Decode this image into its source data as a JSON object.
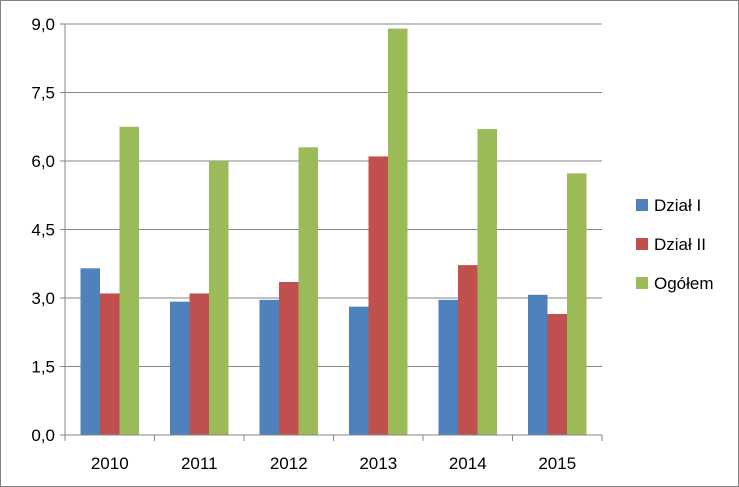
{
  "chart_data": {
    "type": "bar",
    "categories": [
      "2010",
      "2011",
      "2012",
      "2013",
      "2014",
      "2015"
    ],
    "series": [
      {
        "name": "Dział I",
        "color": "#4f81bd",
        "values": [
          3.65,
          2.92,
          2.96,
          2.81,
          2.96,
          3.07
        ]
      },
      {
        "name": "Dział II",
        "color": "#c0504d",
        "values": [
          3.1,
          3.1,
          3.35,
          6.1,
          3.72,
          2.65
        ]
      },
      {
        "name": "Ogółem",
        "color": "#9bbb59",
        "values": [
          6.75,
          6.0,
          6.3,
          8.9,
          6.7,
          5.73
        ]
      }
    ],
    "y_ticks": [
      "0,0",
      "1,5",
      "3,0",
      "4,5",
      "6,0",
      "7,5",
      "9,0"
    ],
    "ylim": [
      0,
      9
    ],
    "grid": true,
    "legend_position": "right"
  }
}
